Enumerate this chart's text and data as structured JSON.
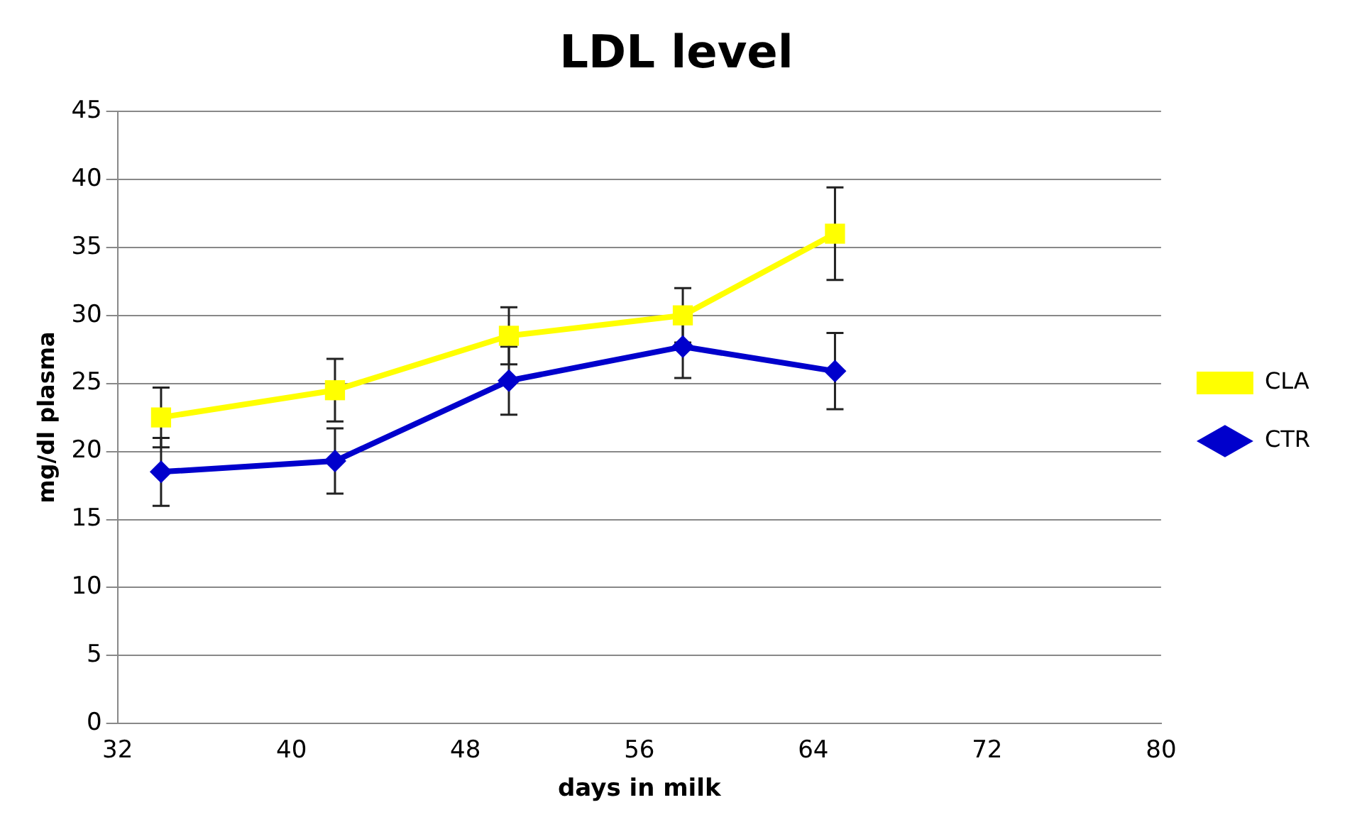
{
  "chart_data": {
    "type": "line",
    "title": "LDL level",
    "xlabel": "days in milk",
    "ylabel": "mg/dl plasma",
    "x": [
      34,
      42,
      50,
      58,
      65
    ],
    "series": [
      {
        "name": "CLA",
        "color": "#ffff00",
        "marker": "square",
        "values": [
          22.5,
          24.5,
          28.5,
          30,
          36
        ],
        "errors": [
          2.2,
          2.3,
          2.1,
          2,
          3.4
        ]
      },
      {
        "name": "CTR",
        "color": "#0000cc",
        "marker": "diamond",
        "values": [
          18.5,
          19.3,
          25.2,
          27.7,
          25.9
        ],
        "errors": [
          2.5,
          2.4,
          2.5,
          2.3,
          2.8
        ]
      }
    ],
    "xlim": [
      32,
      80
    ],
    "xticks": [
      32,
      40,
      48,
      56,
      64,
      72,
      80
    ],
    "ylim": [
      0,
      45
    ],
    "yticks": [
      0,
      5,
      10,
      15,
      20,
      25,
      30,
      35,
      40,
      45
    ],
    "grid": "y",
    "legend": "right",
    "line_style": "solid"
  }
}
